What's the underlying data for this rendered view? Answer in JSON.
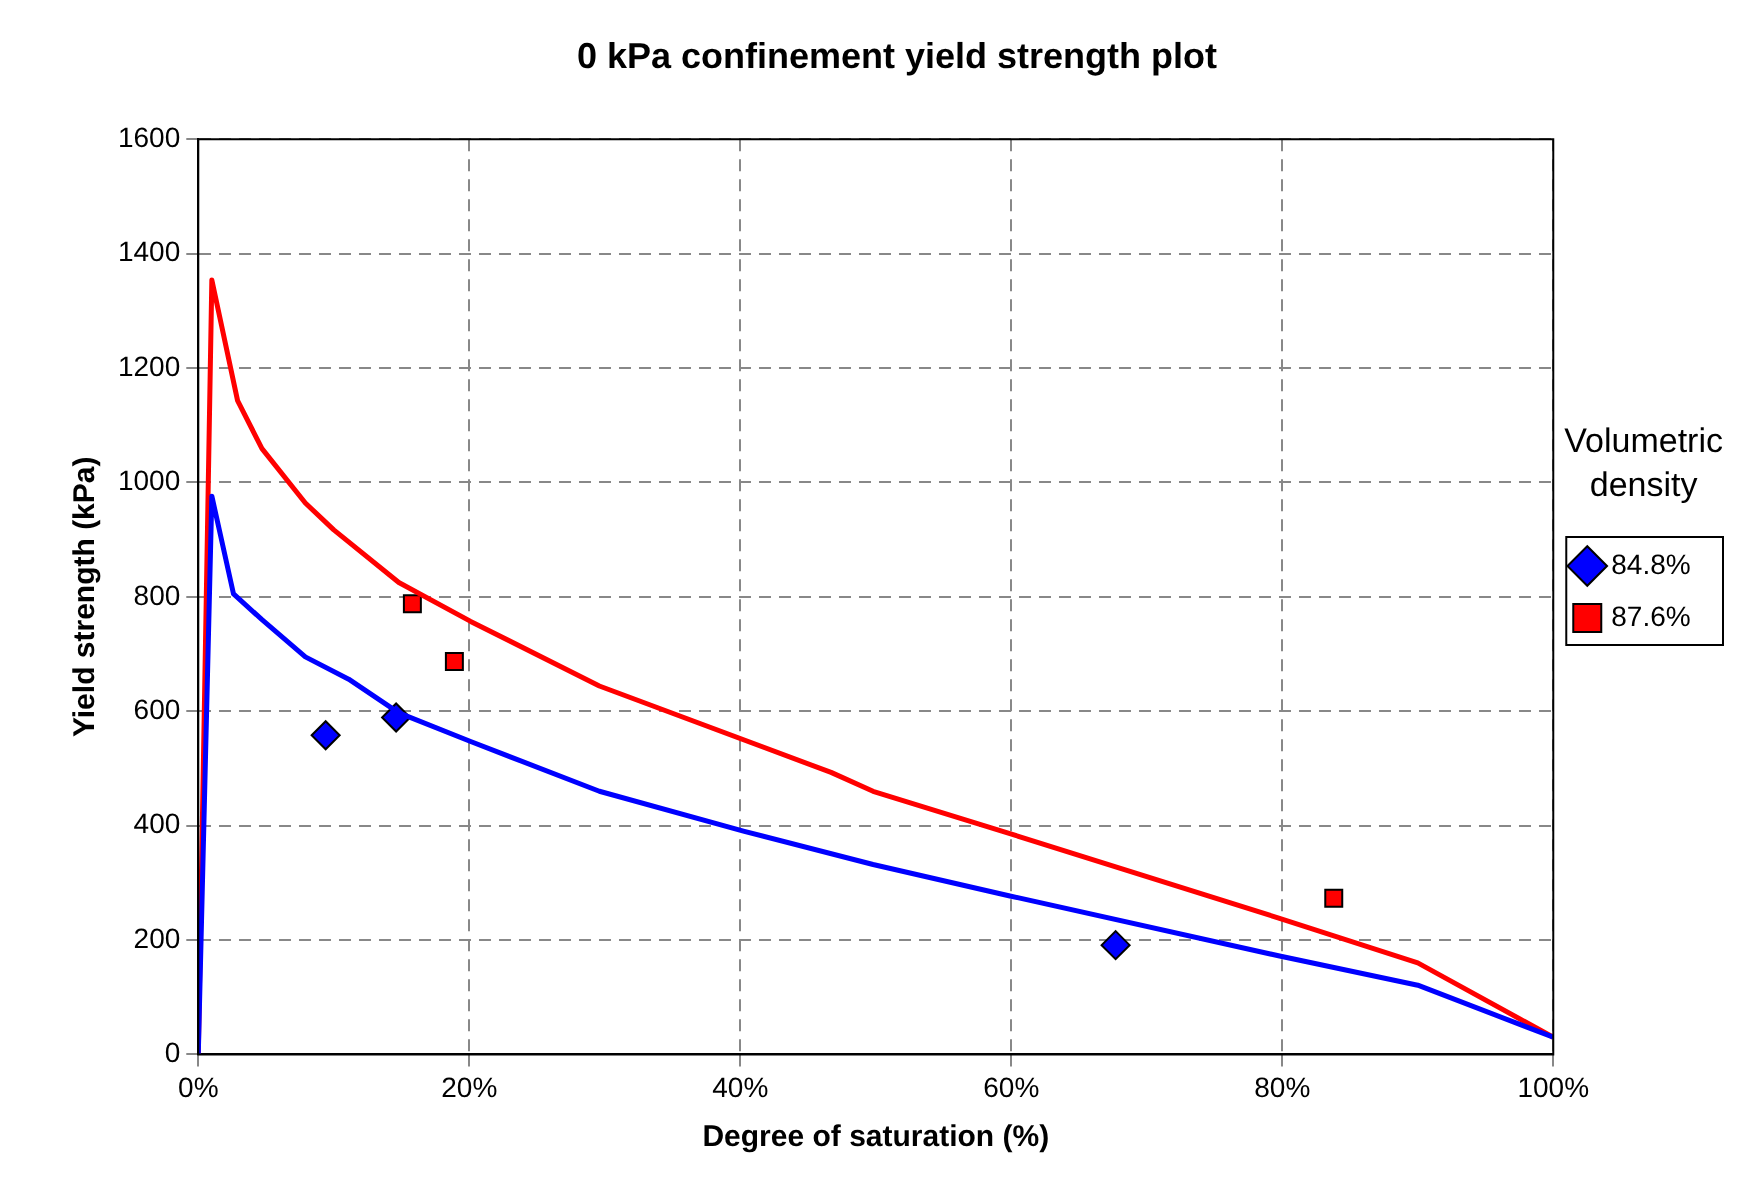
{
  "chart_data": {
    "type": "scatter",
    "title": "0 kPa confinement yield strength plot",
    "xlabel": "Degree of saturation (%)",
    "ylabel": "Yield strength (kPa)",
    "legend_title": "Volumetric density",
    "legend": "right",
    "grid": true,
    "xlim": [
      0,
      100
    ],
    "xticks": [
      {
        "value": 0,
        "label": "0%"
      },
      {
        "value": 20,
        "label": "20%"
      },
      {
        "value": 40,
        "label": "40%"
      },
      {
        "value": 60,
        "label": "60%"
      },
      {
        "value": 80,
        "label": "80%"
      },
      {
        "value": 100,
        "label": "100%"
      }
    ],
    "ylim": [
      0,
      1600
    ],
    "yticks": [
      0,
      200,
      400,
      600,
      800,
      1000,
      1200,
      1400,
      1600
    ],
    "series": [
      {
        "type": "line",
        "color": "#0000ff",
        "marker": "none",
        "x": [
          0,
          1,
          2.6,
          4.7,
          7.9,
          11.1,
          14.8,
          20.1,
          29.6,
          40.3,
          49.8,
          59.9,
          79.8,
          90,
          100
        ],
        "values": [
          0,
          976,
          805,
          760,
          695,
          656,
          597,
          547,
          460,
          390,
          332,
          277,
          172,
          121,
          30
        ]
      },
      {
        "type": "line",
        "color": "#ff0000",
        "marker": "none",
        "x": [
          0,
          1,
          2.9,
          4.7,
          7.9,
          10,
          14.8,
          20.1,
          29.6,
          46.7,
          49.8,
          59.9,
          79.8,
          90,
          100
        ],
        "values": [
          0,
          1354,
          1143,
          1059,
          964,
          917,
          825,
          757,
          644,
          493,
          460,
          386,
          238,
          160,
          30
        ]
      },
      {
        "name": "84.8%",
        "color": "#0000ff",
        "marker": "diamond",
        "x": [
          9.4,
          14.6,
          67.7
        ],
        "values": [
          558,
          589,
          191
        ]
      },
      {
        "name": "87.6%",
        "color": "#ff0000",
        "marker": "square",
        "x": [
          15.8,
          18.9,
          83.8
        ],
        "values": [
          788,
          687,
          273
        ]
      }
    ]
  }
}
